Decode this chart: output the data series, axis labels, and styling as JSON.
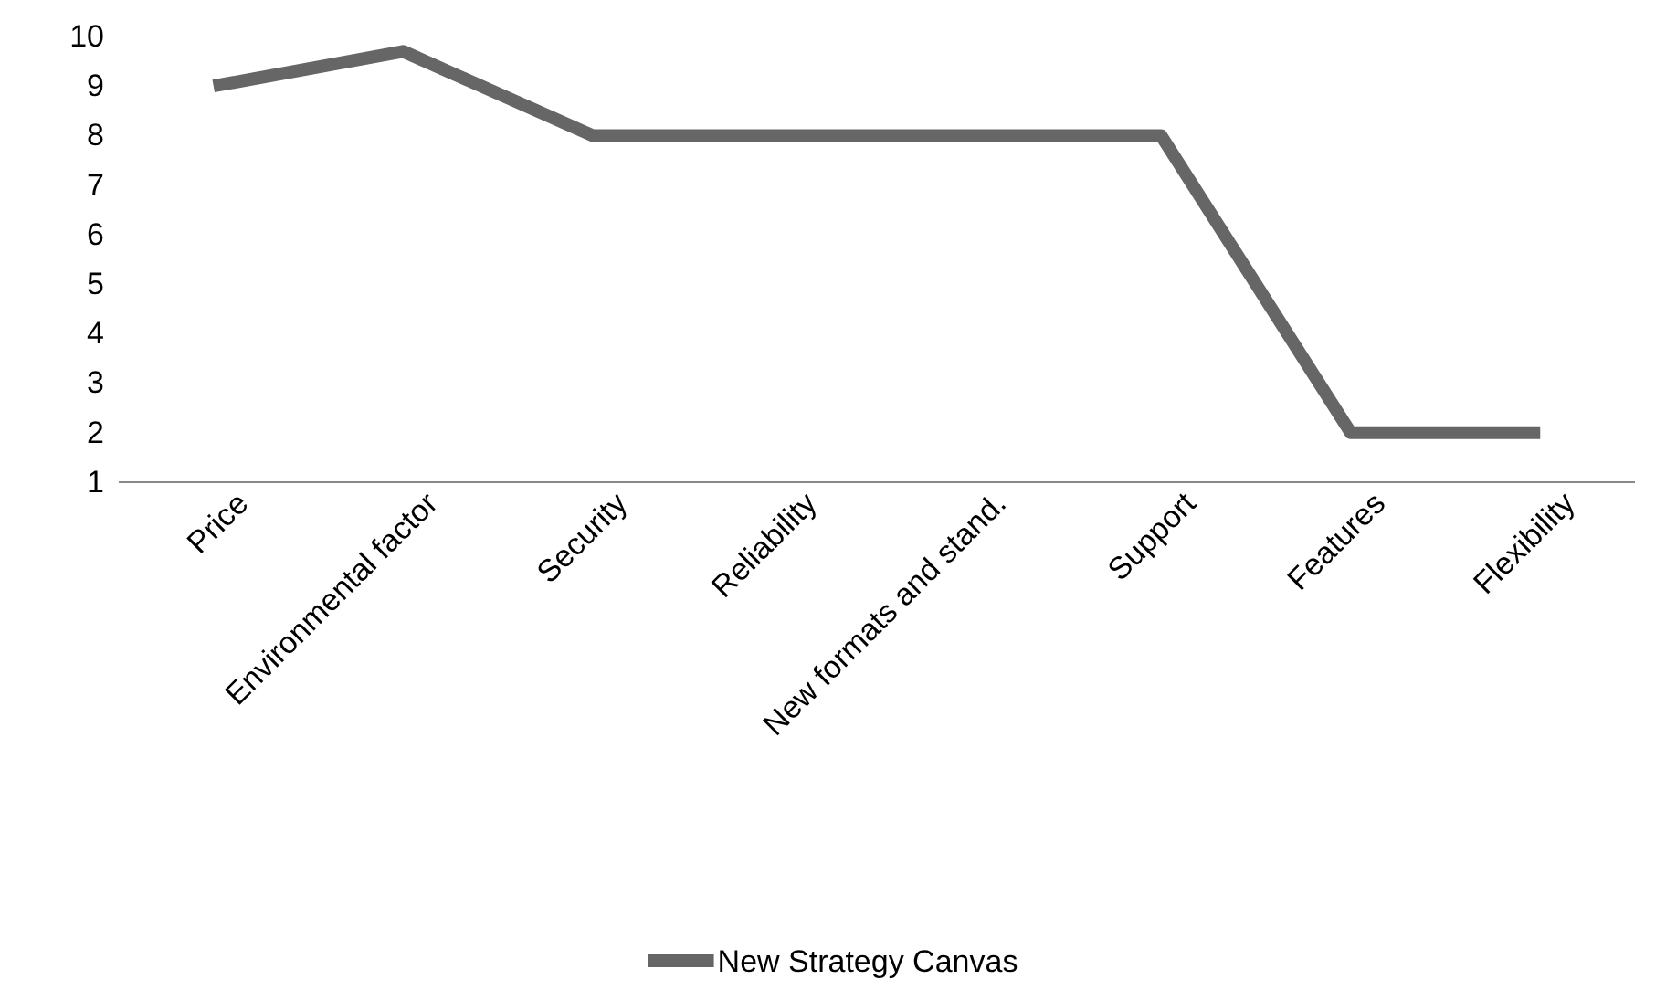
{
  "chart_data": {
    "type": "line",
    "categories": [
      "Price",
      "Environmental factor",
      "Security",
      "Reliability",
      "New formats and stand.",
      "Support",
      "Features",
      "Flexibility"
    ],
    "series": [
      {
        "name": "New Strategy Canvas",
        "color": "#666666",
        "values": [
          9,
          9.7,
          8,
          8,
          8,
          8,
          2,
          2
        ]
      }
    ],
    "ylim": [
      1,
      10
    ],
    "yticks": [
      1,
      2,
      3,
      4,
      5,
      6,
      7,
      8,
      9,
      10
    ],
    "grid": false,
    "legend": "bottom",
    "marker": "none",
    "line_style": "solid"
  }
}
